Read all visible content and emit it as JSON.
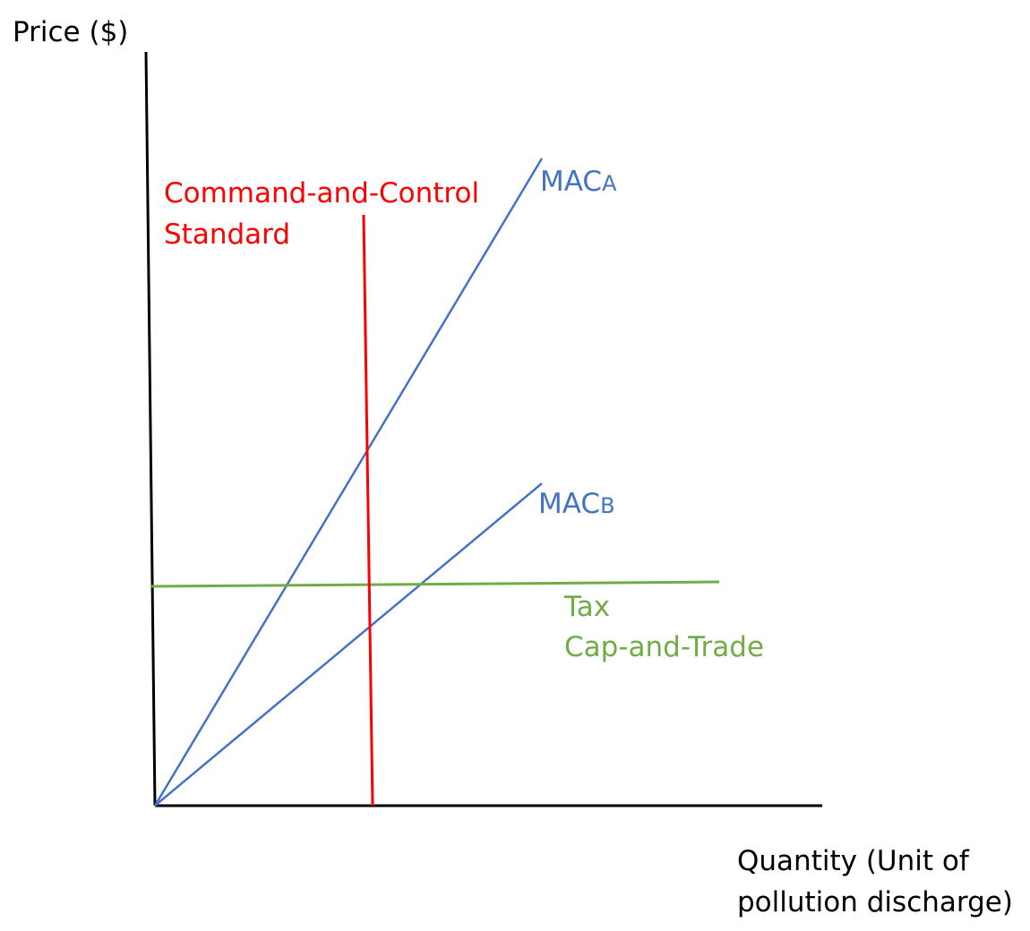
{
  "diagram": {
    "y_axis_label": "Price ($)",
    "x_axis_label_line1": "Quantity (Unit of",
    "x_axis_label_line2": "pollution discharge)",
    "standard_label_line1": "Command-and-Control",
    "standard_label_line2": "Standard",
    "mac_a_main": "MAC",
    "mac_a_sub": "A",
    "mac_b_main": "MAC",
    "mac_b_sub": "B",
    "tax_label": "Tax",
    "cap_label": "Cap-and-Trade"
  },
  "colors": {
    "axis": "#000000",
    "mac_lines": "#4472C4",
    "standard": "#FF0000",
    "tax": "#70AD47"
  }
}
